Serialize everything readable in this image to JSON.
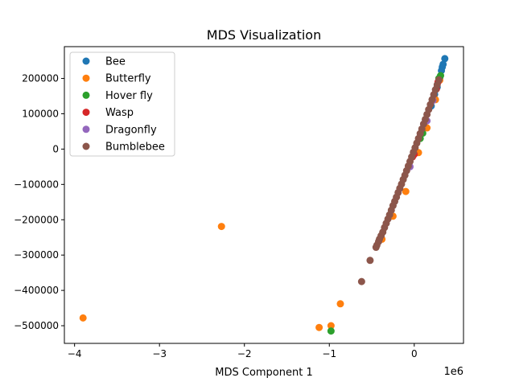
{
  "chart_data": {
    "type": "scatter",
    "title": "MDS Visualization",
    "xlabel": "MDS Component 1",
    "ylabel": "",
    "x_offset_label": "1e6",
    "xlim": [
      -4.12,
      0.58
    ],
    "ylim": [
      -550000,
      290000
    ],
    "x_ticks": [
      -4,
      -3,
      -2,
      -1,
      0
    ],
    "x_tick_labels": [
      "−4",
      "−3",
      "−2",
      "−1",
      "0"
    ],
    "y_ticks": [
      -500000,
      -400000,
      -300000,
      -200000,
      -100000,
      0,
      100000,
      200000
    ],
    "y_tick_labels": [
      "−500000",
      "−400000",
      "−300000",
      "−200000",
      "−100000",
      "0",
      "100000",
      "200000"
    ],
    "grid": false,
    "legend_position": "top-left",
    "series": [
      {
        "name": "Bee",
        "color": "#1f77b4",
        "points": [
          [
            0.36,
            256000
          ],
          [
            0.34,
            240000
          ],
          [
            0.33,
            232000
          ],
          [
            0.32,
            222000
          ],
          [
            0.3,
            200000
          ],
          [
            0.27,
            175000
          ],
          [
            0.24,
            155000
          ],
          [
            0.22,
            140000
          ],
          [
            0.2,
            122000
          ]
        ]
      },
      {
        "name": "Butterfly",
        "color": "#ff7f0e",
        "points": [
          [
            -3.9,
            -478000
          ],
          [
            -2.27,
            -219000
          ],
          [
            -1.12,
            -505000
          ],
          [
            -0.98,
            -500000
          ],
          [
            -0.87,
            -438000
          ],
          [
            -0.38,
            -255000
          ],
          [
            -0.25,
            -190000
          ],
          [
            -0.1,
            -120000
          ],
          [
            0.05,
            -10000
          ],
          [
            0.15,
            60000
          ],
          [
            0.25,
            140000
          ],
          [
            0.3,
            195000
          ]
        ]
      },
      {
        "name": "Hover fly",
        "color": "#2ca02c",
        "points": [
          [
            -0.98,
            -515000
          ],
          [
            0.31,
            208000
          ],
          [
            0.29,
            200000
          ],
          [
            0.1,
            45000
          ],
          [
            0.07,
            30000
          ]
        ]
      },
      {
        "name": "Wasp",
        "color": "#d62728",
        "points": [
          [
            0.0,
            -15000
          ],
          [
            -0.02,
            -22000
          ],
          [
            0.28,
            190000
          ],
          [
            0.26,
            170000
          ]
        ]
      },
      {
        "name": "Dragonfly",
        "color": "#9467bd",
        "points": [
          [
            0.22,
            138000
          ],
          [
            0.15,
            80000
          ],
          [
            -0.05,
            -50000
          ]
        ]
      },
      {
        "name": "Bumblebee",
        "color": "#8c564b",
        "points": [
          [
            -0.62,
            -375000
          ],
          [
            -0.52,
            -315000
          ],
          [
            -0.45,
            -278000
          ],
          [
            -0.44,
            -272000
          ],
          [
            -0.42,
            -262000
          ],
          [
            -0.41,
            -255000
          ],
          [
            -0.39,
            -245000
          ],
          [
            -0.37,
            -235000
          ],
          [
            -0.35,
            -222000
          ],
          [
            -0.33,
            -210000
          ],
          [
            -0.31,
            -198000
          ],
          [
            -0.29,
            -186000
          ],
          [
            -0.27,
            -173000
          ],
          [
            -0.25,
            -160000
          ],
          [
            -0.23,
            -148000
          ],
          [
            -0.21,
            -136000
          ],
          [
            -0.19,
            -123000
          ],
          [
            -0.17,
            -111000
          ],
          [
            -0.15,
            -99000
          ],
          [
            -0.13,
            -86000
          ],
          [
            -0.11,
            -74000
          ],
          [
            -0.09,
            -61000
          ],
          [
            -0.07,
            -48000
          ],
          [
            -0.05,
            -35000
          ],
          [
            -0.03,
            -22000
          ],
          [
            -0.01,
            -9000
          ],
          [
            0.01,
            4000
          ],
          [
            0.03,
            17000
          ],
          [
            0.05,
            30000
          ],
          [
            0.07,
            44000
          ],
          [
            0.09,
            57000
          ],
          [
            0.11,
            71000
          ],
          [
            0.13,
            84000
          ],
          [
            0.15,
            98000
          ],
          [
            0.17,
            112000
          ],
          [
            0.19,
            126000
          ],
          [
            0.21,
            140000
          ],
          [
            0.23,
            154000
          ],
          [
            0.25,
            168000
          ],
          [
            0.27,
            182000
          ],
          [
            0.29,
            196000
          ]
        ]
      }
    ]
  }
}
